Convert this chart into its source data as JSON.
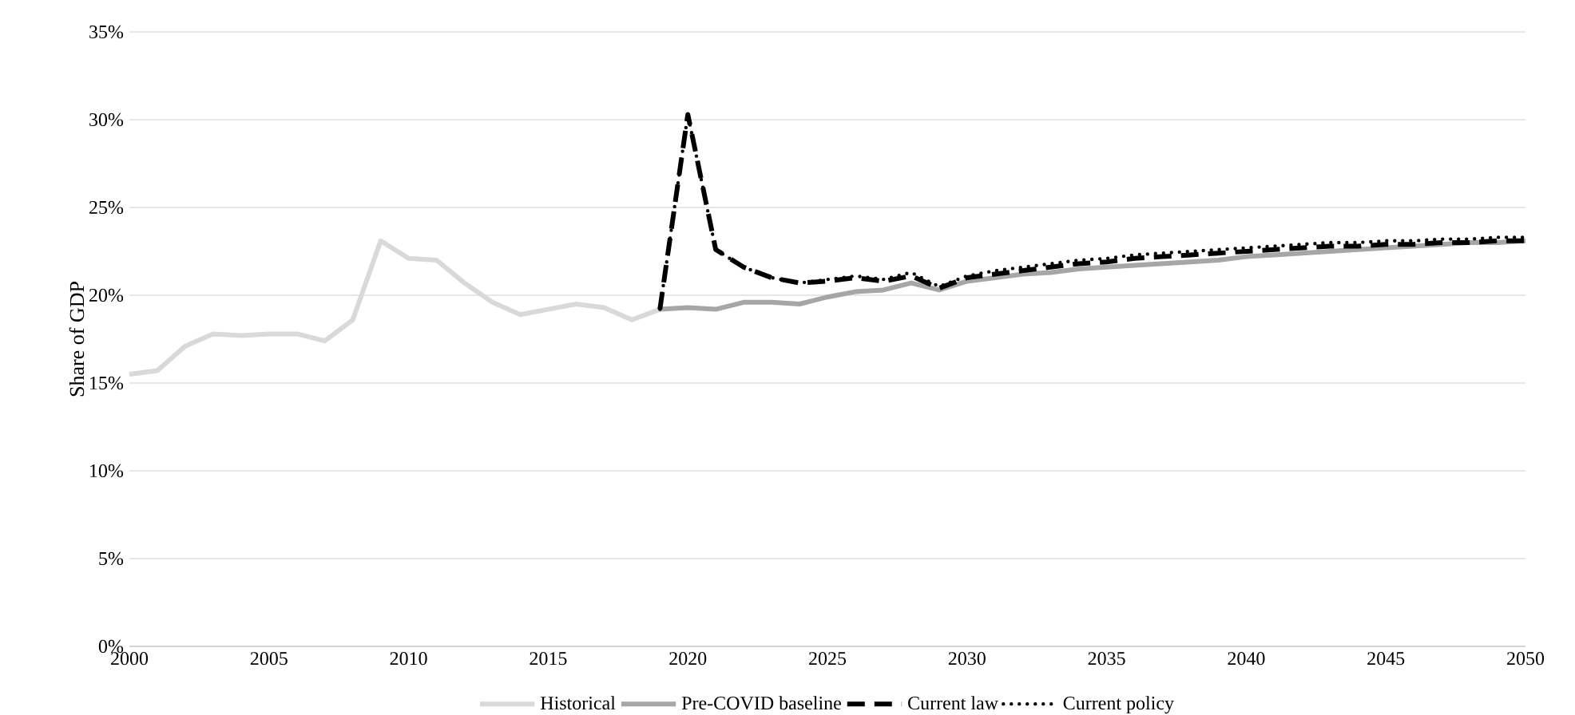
{
  "chart_data": {
    "type": "line",
    "ylabel": "Share of GDP",
    "xlim": [
      2000,
      2050
    ],
    "xticks": [
      2000,
      2005,
      2010,
      2015,
      2020,
      2025,
      2030,
      2035,
      2040,
      2045,
      2050
    ],
    "ylim": [
      0,
      35
    ],
    "yticks": [
      {
        "value": 0,
        "label": "0%"
      },
      {
        "value": 5,
        "label": "5%"
      },
      {
        "value": 10,
        "label": "10%"
      },
      {
        "value": 15,
        "label": "15%"
      },
      {
        "value": 20,
        "label": "20%"
      },
      {
        "value": 25,
        "label": "25%"
      },
      {
        "value": 30,
        "label": "30%"
      },
      {
        "value": 35,
        "label": "35%"
      }
    ],
    "grid": "y",
    "legend": "bottom",
    "series": [
      {
        "name": "Historical",
        "color": "#d9d9d9",
        "line_style": "solid",
        "x": [
          2000,
          2001,
          2002,
          2003,
          2004,
          2005,
          2006,
          2007,
          2008,
          2009,
          2010,
          2011,
          2012,
          2013,
          2014,
          2015,
          2016,
          2017,
          2018,
          2019
        ],
        "values": [
          15.5,
          15.7,
          17.1,
          17.8,
          17.7,
          17.8,
          17.8,
          17.4,
          18.6,
          23.1,
          22.1,
          22.0,
          20.7,
          19.6,
          18.9,
          19.2,
          19.5,
          19.3,
          18.6,
          19.2
        ]
      },
      {
        "name": "Pre-COVID baseline",
        "color": "#a6a6a6",
        "line_style": "solid",
        "x": [
          2019,
          2020,
          2021,
          2022,
          2023,
          2024,
          2025,
          2026,
          2027,
          2028,
          2029,
          2030,
          2031,
          2032,
          2033,
          2034,
          2035,
          2036,
          2037,
          2038,
          2039,
          2040,
          2041,
          2042,
          2043,
          2044,
          2045,
          2046,
          2047,
          2048,
          2049,
          2050
        ],
        "values": [
          19.2,
          19.3,
          19.2,
          19.6,
          19.6,
          19.5,
          19.9,
          20.2,
          20.3,
          20.7,
          20.3,
          20.8,
          21.0,
          21.2,
          21.3,
          21.5,
          21.6,
          21.7,
          21.8,
          21.9,
          22.0,
          22.2,
          22.3,
          22.4,
          22.5,
          22.6,
          22.7,
          22.8,
          22.9,
          23.0,
          23.0,
          23.1
        ]
      },
      {
        "name": "Current law",
        "color": "#000000",
        "line_style": "dashed",
        "x": [
          2019,
          2020,
          2021,
          2022,
          2023,
          2024,
          2025,
          2026,
          2027,
          2028,
          2029,
          2030,
          2031,
          2032,
          2033,
          2034,
          2035,
          2036,
          2037,
          2038,
          2039,
          2040,
          2041,
          2042,
          2043,
          2044,
          2045,
          2046,
          2047,
          2048,
          2049,
          2050
        ],
        "values": [
          19.2,
          30.3,
          22.6,
          21.6,
          21.0,
          20.7,
          20.8,
          21.0,
          20.8,
          21.1,
          20.4,
          21.0,
          21.2,
          21.4,
          21.6,
          21.8,
          21.9,
          22.1,
          22.2,
          22.3,
          22.4,
          22.5,
          22.6,
          22.7,
          22.8,
          22.8,
          22.9,
          22.9,
          23.0,
          23.0,
          23.1,
          23.1
        ]
      },
      {
        "name": "Current policy",
        "color": "#000000",
        "line_style": "dotted",
        "x": [
          2019,
          2020,
          2021,
          2022,
          2023,
          2024,
          2025,
          2026,
          2027,
          2028,
          2029,
          2030,
          2031,
          2032,
          2033,
          2034,
          2035,
          2036,
          2037,
          2038,
          2039,
          2040,
          2041,
          2042,
          2043,
          2044,
          2045,
          2046,
          2047,
          2048,
          2049,
          2050
        ],
        "values": [
          19.2,
          30.3,
          22.6,
          21.6,
          21.0,
          20.7,
          20.9,
          21.1,
          20.9,
          21.3,
          20.5,
          21.1,
          21.4,
          21.6,
          21.8,
          22.0,
          22.1,
          22.3,
          22.4,
          22.5,
          22.6,
          22.7,
          22.8,
          22.9,
          23.0,
          23.0,
          23.1,
          23.1,
          23.2,
          23.2,
          23.3,
          23.3
        ]
      }
    ]
  }
}
